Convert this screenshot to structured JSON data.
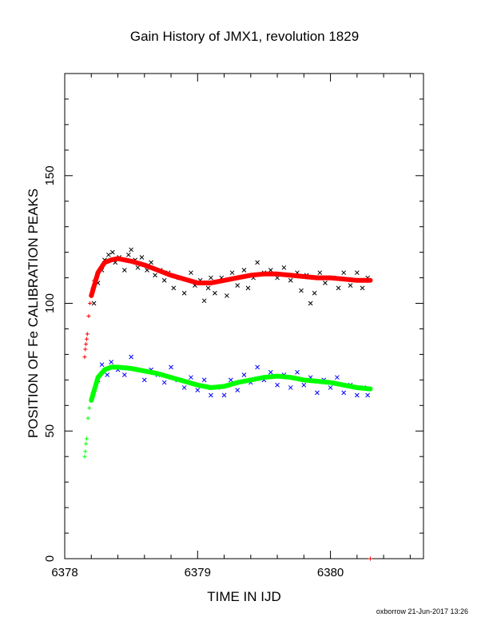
{
  "chart_data": {
    "type": "scatter",
    "title": "Gain History of JMX1, revolution 1829",
    "xlabel": "TIME IN IJD",
    "ylabel": "POSITION OF Fe CALIBRATION PEAKS",
    "xlim": [
      6378.0,
      6380.7
    ],
    "ylim": [
      0,
      190
    ],
    "x_ticks": [
      6378,
      6379,
      6380
    ],
    "y_ticks": [
      0,
      50,
      100,
      150
    ],
    "x_minor_step": 0.2,
    "y_minor_step": 10,
    "grid": false,
    "series": [
      {
        "name": "",
        "marker": "x",
        "color": "#000000",
        "points": [
          [
            6378.22,
            100
          ],
          [
            6378.25,
            108
          ],
          [
            6378.28,
            113
          ],
          [
            6378.3,
            117
          ],
          [
            6378.33,
            119
          ],
          [
            6378.36,
            120
          ],
          [
            6378.38,
            116
          ],
          [
            6378.41,
            118
          ],
          [
            6378.45,
            113
          ],
          [
            6378.48,
            119
          ],
          [
            6378.5,
            121
          ],
          [
            6378.53,
            117
          ],
          [
            6378.55,
            114
          ],
          [
            6378.58,
            118
          ],
          [
            6378.62,
            113
          ],
          [
            6378.65,
            116
          ],
          [
            6378.68,
            111
          ],
          [
            6378.72,
            113
          ],
          [
            6378.75,
            109
          ],
          [
            6378.78,
            112
          ],
          [
            6378.82,
            106
          ],
          [
            6378.86,
            110
          ],
          [
            6378.9,
            104
          ],
          [
            6378.95,
            112
          ],
          [
            6378.98,
            107
          ],
          [
            6379.02,
            109
          ],
          [
            6379.05,
            101
          ],
          [
            6379.08,
            106
          ],
          [
            6379.1,
            110
          ],
          [
            6379.13,
            104
          ],
          [
            6379.18,
            110
          ],
          [
            6379.22,
            103
          ],
          [
            6379.26,
            112
          ],
          [
            6379.3,
            107
          ],
          [
            6379.35,
            113
          ],
          [
            6379.38,
            106
          ],
          [
            6379.42,
            110
          ],
          [
            6379.45,
            116
          ],
          [
            6379.5,
            112
          ],
          [
            6379.55,
            113
          ],
          [
            6379.6,
            110
          ],
          [
            6379.65,
            114
          ],
          [
            6379.7,
            109
          ],
          [
            6379.75,
            112
          ],
          [
            6379.78,
            105
          ],
          [
            6379.82,
            111
          ],
          [
            6379.85,
            100
          ],
          [
            6379.88,
            104
          ],
          [
            6379.92,
            112
          ],
          [
            6379.96,
            108
          ],
          [
            6380.02,
            110
          ],
          [
            6380.06,
            106
          ],
          [
            6380.1,
            112
          ],
          [
            6380.15,
            107
          ],
          [
            6380.2,
            112
          ],
          [
            6380.24,
            106
          ],
          [
            6380.28,
            110
          ]
        ]
      },
      {
        "name": "",
        "marker": "plus",
        "color": "#ff0000",
        "points": [
          [
            6378.15,
            79
          ],
          [
            6378.155,
            82
          ],
          [
            6378.16,
            84
          ],
          [
            6378.165,
            86
          ],
          [
            6378.17,
            88
          ],
          [
            6378.18,
            95
          ],
          [
            6378.19,
            100
          ],
          [
            6378.2,
            103
          ],
          [
            6378.21,
            106
          ],
          [
            6378.22,
            109
          ],
          [
            6380.3,
            0
          ]
        ]
      },
      {
        "name": "",
        "marker": "line",
        "color": "#ff0000",
        "points": [
          [
            6378.2,
            103
          ],
          [
            6378.25,
            112
          ],
          [
            6378.3,
            116
          ],
          [
            6378.35,
            117
          ],
          [
            6378.4,
            117.5
          ],
          [
            6378.5,
            116.5
          ],
          [
            6378.6,
            115
          ],
          [
            6378.7,
            113
          ],
          [
            6378.8,
            111
          ],
          [
            6378.9,
            109.5
          ],
          [
            6379.0,
            108
          ],
          [
            6379.1,
            108
          ],
          [
            6379.2,
            109
          ],
          [
            6379.3,
            110
          ],
          [
            6379.4,
            111
          ],
          [
            6379.5,
            111.5
          ],
          [
            6379.6,
            111.5
          ],
          [
            6379.7,
            111
          ],
          [
            6379.8,
            110.5
          ],
          [
            6379.9,
            110
          ],
          [
            6380.0,
            110
          ],
          [
            6380.1,
            109.5
          ],
          [
            6380.2,
            109
          ],
          [
            6380.3,
            109
          ]
        ]
      },
      {
        "name": "",
        "marker": "x",
        "color": "#0000ff",
        "points": [
          [
            6378.25,
            70
          ],
          [
            6378.28,
            76
          ],
          [
            6378.32,
            72
          ],
          [
            6378.35,
            77
          ],
          [
            6378.4,
            74
          ],
          [
            6378.45,
            72
          ],
          [
            6378.5,
            79
          ],
          [
            6378.55,
            74
          ],
          [
            6378.6,
            70
          ],
          [
            6378.65,
            74
          ],
          [
            6378.7,
            72
          ],
          [
            6378.75,
            69
          ],
          [
            6378.8,
            75
          ],
          [
            6378.85,
            70
          ],
          [
            6378.9,
            67
          ],
          [
            6378.95,
            71
          ],
          [
            6379.0,
            66
          ],
          [
            6379.05,
            70
          ],
          [
            6379.1,
            64
          ],
          [
            6379.15,
            67
          ],
          [
            6379.2,
            64
          ],
          [
            6379.25,
            70
          ],
          [
            6379.3,
            66
          ],
          [
            6379.35,
            72
          ],
          [
            6379.4,
            69
          ],
          [
            6379.45,
            75
          ],
          [
            6379.5,
            70
          ],
          [
            6379.55,
            73
          ],
          [
            6379.6,
            68
          ],
          [
            6379.65,
            72
          ],
          [
            6379.7,
            67
          ],
          [
            6379.75,
            73
          ],
          [
            6379.8,
            68
          ],
          [
            6379.85,
            71
          ],
          [
            6379.9,
            65
          ],
          [
            6379.95,
            70
          ],
          [
            6380.0,
            67
          ],
          [
            6380.05,
            71
          ],
          [
            6380.1,
            65
          ],
          [
            6380.15,
            68
          ],
          [
            6380.2,
            64
          ],
          [
            6380.25,
            67
          ],
          [
            6380.28,
            64
          ]
        ]
      },
      {
        "name": "",
        "marker": "plus",
        "color": "#00ff00",
        "points": [
          [
            6378.15,
            40
          ],
          [
            6378.155,
            42
          ],
          [
            6378.16,
            45
          ],
          [
            6378.165,
            47
          ],
          [
            6378.175,
            55
          ],
          [
            6378.185,
            59
          ],
          [
            6378.2,
            63
          ],
          [
            6378.21,
            65
          ]
        ]
      },
      {
        "name": "",
        "marker": "line",
        "color": "#00ff00",
        "points": [
          [
            6378.2,
            62
          ],
          [
            6378.25,
            71
          ],
          [
            6378.3,
            74
          ],
          [
            6378.35,
            75
          ],
          [
            6378.4,
            75
          ],
          [
            6378.5,
            74.5
          ],
          [
            6378.6,
            73.5
          ],
          [
            6378.7,
            72.5
          ],
          [
            6378.8,
            71
          ],
          [
            6378.9,
            69.5
          ],
          [
            6379.0,
            68
          ],
          [
            6379.1,
            67
          ],
          [
            6379.2,
            67.5
          ],
          [
            6379.3,
            69
          ],
          [
            6379.4,
            70
          ],
          [
            6379.5,
            71
          ],
          [
            6379.6,
            71.5
          ],
          [
            6379.7,
            71
          ],
          [
            6379.8,
            70
          ],
          [
            6379.9,
            69.5
          ],
          [
            6380.0,
            69
          ],
          [
            6380.1,
            68
          ],
          [
            6380.2,
            67
          ],
          [
            6380.3,
            66.5
          ]
        ]
      }
    ]
  },
  "footer": "oxborrow 21-Jun-2017 13:26"
}
